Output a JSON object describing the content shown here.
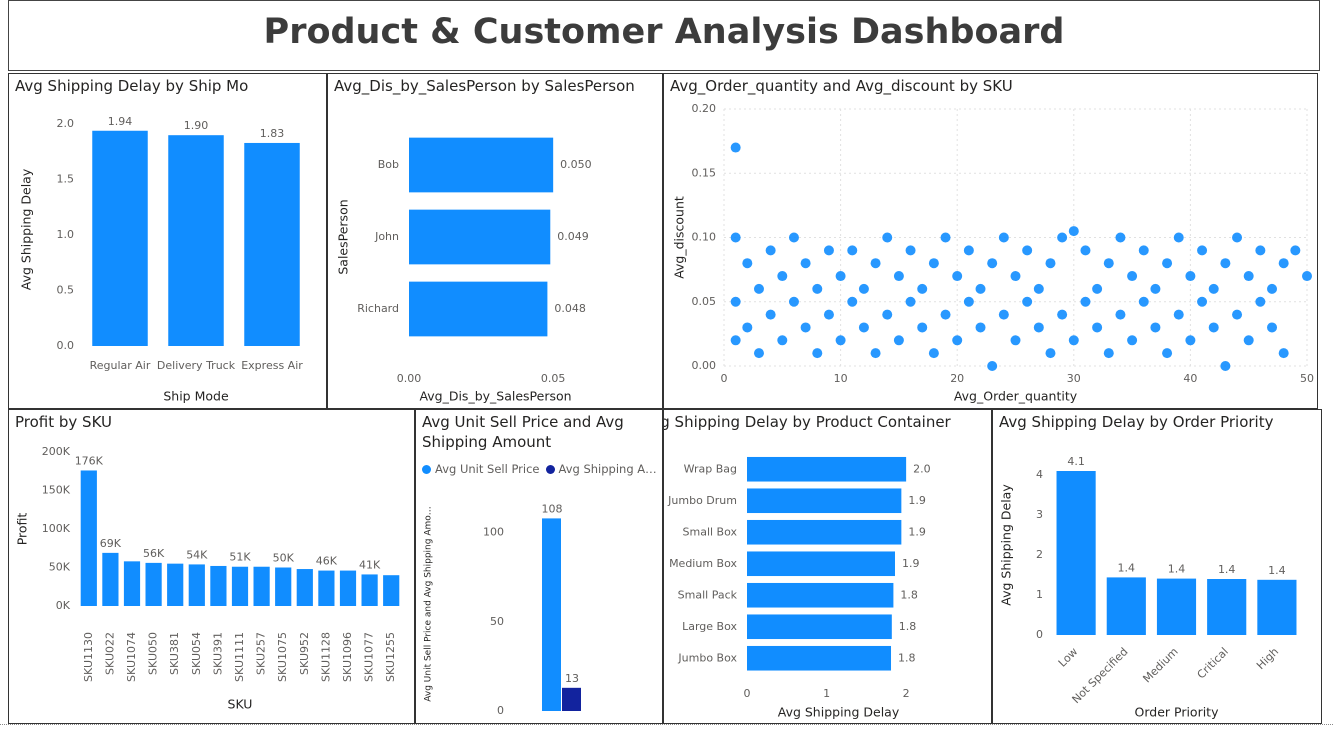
{
  "header": {
    "title": "Product & Customer Analysis Dashboard"
  },
  "chart_data": [
    {
      "type": "bar",
      "title": "Avg Shipping Delay by Ship Mo",
      "xlabel": "Ship Mode",
      "ylabel": "Avg Shipping Delay",
      "categories": [
        "Regular Air",
        "Delivery Truck",
        "Express Air"
      ],
      "values": [
        1.94,
        1.9,
        1.83
      ],
      "value_labels": [
        "1.94",
        "1.90",
        "1.83"
      ],
      "color": "#118dff",
      "ylim": [
        0,
        2.1
      ],
      "yticks": [
        {
          "value": 0,
          "label": "0.0"
        },
        0.5,
        {
          "value": 1,
          "label": "1.0"
        },
        1.5,
        {
          "value": 2,
          "label": "2.0"
        }
      ],
      "grid": false
    },
    {
      "type": "barh",
      "title": "Avg_Dis_by_SalesPerson by SalesPerson",
      "xlabel": "Avg_Dis_by_SalesPerson",
      "ylabel": "SalesPerson",
      "categories": [
        "Bob",
        "John",
        "Richard"
      ],
      "values": [
        0.05,
        0.049,
        0.048
      ],
      "value_labels": [
        "0.050",
        "0.049",
        "0.048"
      ],
      "color": "#118dff",
      "xlim": [
        0,
        0.06
      ],
      "xticks": [
        {
          "value": 0,
          "label": "0.00"
        },
        0.05
      ],
      "grid": false
    },
    {
      "type": "scatter",
      "title": "Avg_Order_quantity and Avg_discount by SKU",
      "xlabel": "Avg_Order_quantity",
      "ylabel": "Avg_discount",
      "x": [
        1,
        1,
        1,
        1,
        2,
        2,
        3,
        3,
        4,
        4,
        5,
        5,
        6,
        6,
        7,
        7,
        8,
        8,
        9,
        9,
        10,
        10,
        11,
        11,
        12,
        12,
        13,
        13,
        14,
        14,
        15,
        15,
        16,
        16,
        17,
        17,
        18,
        18,
        19,
        19,
        20,
        20,
        21,
        21,
        22,
        22,
        23,
        23,
        24,
        24,
        25,
        25,
        26,
        26,
        27,
        27,
        28,
        28,
        29,
        29,
        30,
        30,
        31,
        31,
        32,
        32,
        33,
        33,
        34,
        34,
        35,
        35,
        36,
        36,
        37,
        37,
        38,
        38,
        39,
        39,
        40,
        40,
        41,
        41,
        42,
        42,
        43,
        43,
        44,
        44,
        45,
        45,
        46,
        46,
        47,
        47,
        48,
        48,
        49,
        50
      ],
      "values": [
        0.17,
        0.1,
        0.05,
        0.02,
        0.08,
        0.03,
        0.06,
        0.01,
        0.09,
        0.04,
        0.07,
        0.02,
        0.1,
        0.05,
        0.03,
        0.08,
        0.06,
        0.01,
        0.09,
        0.04,
        0.07,
        0.02,
        0.09,
        0.05,
        0.03,
        0.06,
        0.08,
        0.01,
        0.1,
        0.04,
        0.07,
        0.02,
        0.09,
        0.05,
        0.06,
        0.03,
        0.08,
        0.01,
        0.1,
        0.04,
        0.07,
        0.02,
        0.09,
        0.05,
        0.06,
        0.03,
        0.08,
        0.0,
        0.1,
        0.04,
        0.07,
        0.02,
        0.09,
        0.05,
        0.06,
        0.03,
        0.08,
        0.01,
        0.1,
        0.04,
        0.105,
        0.02,
        0.09,
        0.05,
        0.06,
        0.03,
        0.08,
        0.01,
        0.1,
        0.04,
        0.07,
        0.02,
        0.09,
        0.05,
        0.06,
        0.03,
        0.08,
        0.01,
        0.1,
        0.04,
        0.07,
        0.02,
        0.09,
        0.05,
        0.06,
        0.03,
        0.08,
        0.0,
        0.1,
        0.04,
        0.07,
        0.02,
        0.09,
        0.05,
        0.06,
        0.03,
        0.08,
        0.01,
        0.09,
        0.07
      ],
      "color": "#118dff",
      "xlim": [
        0,
        50
      ],
      "xticks": [
        0,
        10,
        20,
        30,
        40,
        50
      ],
      "ylim": [
        0,
        0.2
      ],
      "yticks": [
        {
          "value": 0,
          "label": "0.00"
        },
        0.05,
        {
          "value": 0.1,
          "label": "0.10"
        },
        0.15,
        {
          "value": 0.2,
          "label": "0.20"
        }
      ],
      "grid": true
    },
    {
      "type": "bar",
      "title": "Profit by SKU",
      "xlabel": "SKU",
      "ylabel": "Profit",
      "categories": [
        "SKU1130",
        "SKU022",
        "SKU1074",
        "SKU050",
        "SKU381",
        "SKU054",
        "SKU391",
        "SKU1111",
        "SKU257",
        "SKU1075",
        "SKU952",
        "SKU1128",
        "SKU1096",
        "SKU1077",
        "SKU1255"
      ],
      "values": [
        176000,
        69000,
        58000,
        56000,
        55000,
        54000,
        52000,
        51000,
        51000,
        50000,
        48000,
        46000,
        46000,
        41000,
        40000
      ],
      "value_labels": [
        "176K",
        "69K",
        null,
        "56K",
        null,
        "54K",
        null,
        "51K",
        null,
        "50K",
        null,
        "46K",
        null,
        "41K",
        null
      ],
      "color": "#118dff",
      "ylim": [
        0,
        200000
      ],
      "yticks": [
        {
          "value": 0,
          "label": "0K"
        },
        {
          "value": 50000,
          "label": "50K"
        },
        {
          "value": 100000,
          "label": "100K"
        },
        {
          "value": 150000,
          "label": "150K"
        },
        {
          "value": 200000,
          "label": "200K"
        }
      ],
      "grid": false
    },
    {
      "type": "bar",
      "title": "Avg Unit Sell Price and Avg Shipping Amount",
      "ylabel": "Avg Unit Sell Price and Avg Shipping Amo…",
      "categories": [
        null
      ],
      "series": [
        {
          "name": "Avg Unit Sell Price",
          "color": "#118dff",
          "values": [
            108
          ]
        },
        {
          "name": "Avg Shipping A…",
          "color": "#12239e",
          "values": [
            13
          ]
        }
      ],
      "ylim": [
        0,
        120
      ],
      "yticks": [
        0,
        50,
        100
      ],
      "grid": false
    },
    {
      "type": "barh",
      "title": "Avg Shipping Delay by Product Container",
      "xlabel": "Avg Shipping Delay",
      "categories": [
        "Wrap Bag",
        "Jumbo Drum",
        "Small Box",
        "Medium Box",
        "Small Pack",
        "Large Box",
        "Jumbo Box"
      ],
      "values": [
        2.0,
        1.94,
        1.94,
        1.86,
        1.84,
        1.82,
        1.81
      ],
      "value_labels": [
        "2.0",
        "1.9",
        "1.9",
        "1.9",
        "1.8",
        "1.8",
        "1.8"
      ],
      "color": "#118dff",
      "xlim": [
        0,
        2.3
      ],
      "xticks": [
        0,
        1,
        2
      ],
      "grid": false
    },
    {
      "type": "bar",
      "title": "Avg Shipping Delay by Order Priority",
      "xlabel": "Order Priority",
      "ylabel": "Avg Shipping Delay",
      "categories": [
        "Low",
        "Not Specified",
        "Medium",
        "Critical",
        "High"
      ],
      "values": [
        4.1,
        1.44,
        1.41,
        1.4,
        1.38
      ],
      "value_labels": [
        "4.1",
        "1.4",
        "1.4",
        "1.4",
        "1.4"
      ],
      "color": "#118dff",
      "ylim": [
        0,
        4.5
      ],
      "yticks": [
        0,
        1,
        2,
        3,
        4
      ],
      "grid": false
    }
  ]
}
